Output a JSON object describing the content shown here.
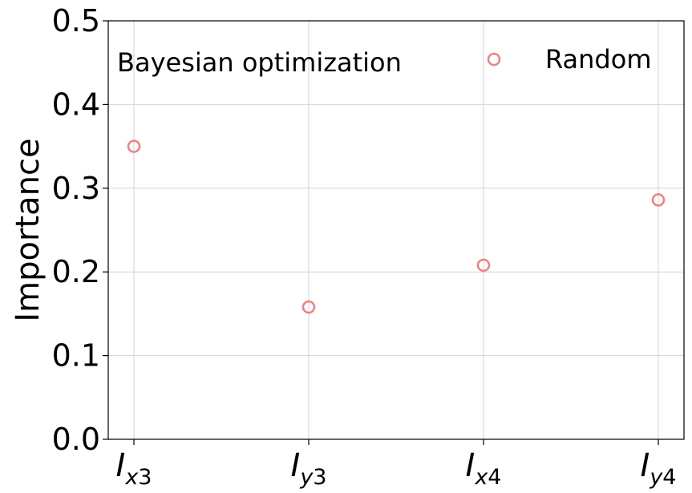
{
  "chart_data": {
    "type": "scatter",
    "categories": [
      {
        "main": "I",
        "sub_var": "x",
        "sub_num": "3"
      },
      {
        "main": "I",
        "sub_var": "y",
        "sub_num": "3"
      },
      {
        "main": "I",
        "sub_var": "x",
        "sub_num": "4"
      },
      {
        "main": "I",
        "sub_var": "y",
        "sub_num": "4"
      }
    ],
    "series": [
      {
        "name": "Random",
        "values": [
          0.35,
          0.158,
          0.208,
          0.286
        ],
        "color": "#f08080",
        "marker": "hollow-circle"
      }
    ],
    "annotation": "Bayesian optimization",
    "ylabel": "Importance",
    "xlabel": "",
    "title": "",
    "ylim": [
      0,
      0.5
    ],
    "yticks": [
      0.0,
      0.1,
      0.2,
      0.3,
      0.4,
      0.5
    ],
    "grid": true,
    "legend_position": "top-right"
  }
}
